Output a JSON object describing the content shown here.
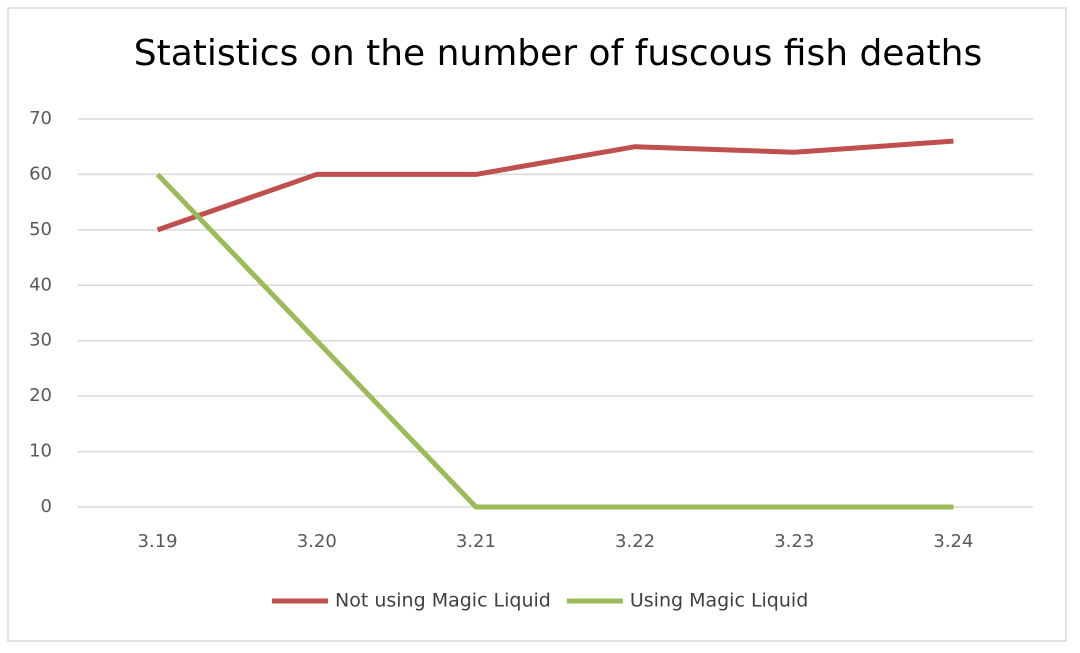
{
  "chart_data": {
    "type": "line",
    "title": "Statistics on the number of fuscous fish deaths",
    "categories": [
      "3.19",
      "3.20",
      "3.21",
      "3.22",
      "3.23",
      "3.24"
    ],
    "series": [
      {
        "name": "Not using Magic Liquid",
        "color": "#c0504d",
        "values": [
          50,
          60,
          60,
          65,
          64,
          66
        ]
      },
      {
        "name": "Using Magic Liquid",
        "color": "#9bbb59",
        "values": [
          60,
          30,
          0,
          0,
          0,
          0
        ]
      }
    ],
    "ylim": [
      0,
      70
    ],
    "yticks": [
      0,
      10,
      20,
      30,
      40,
      50,
      60,
      70
    ],
    "grid": true,
    "legend": "bottom"
  }
}
